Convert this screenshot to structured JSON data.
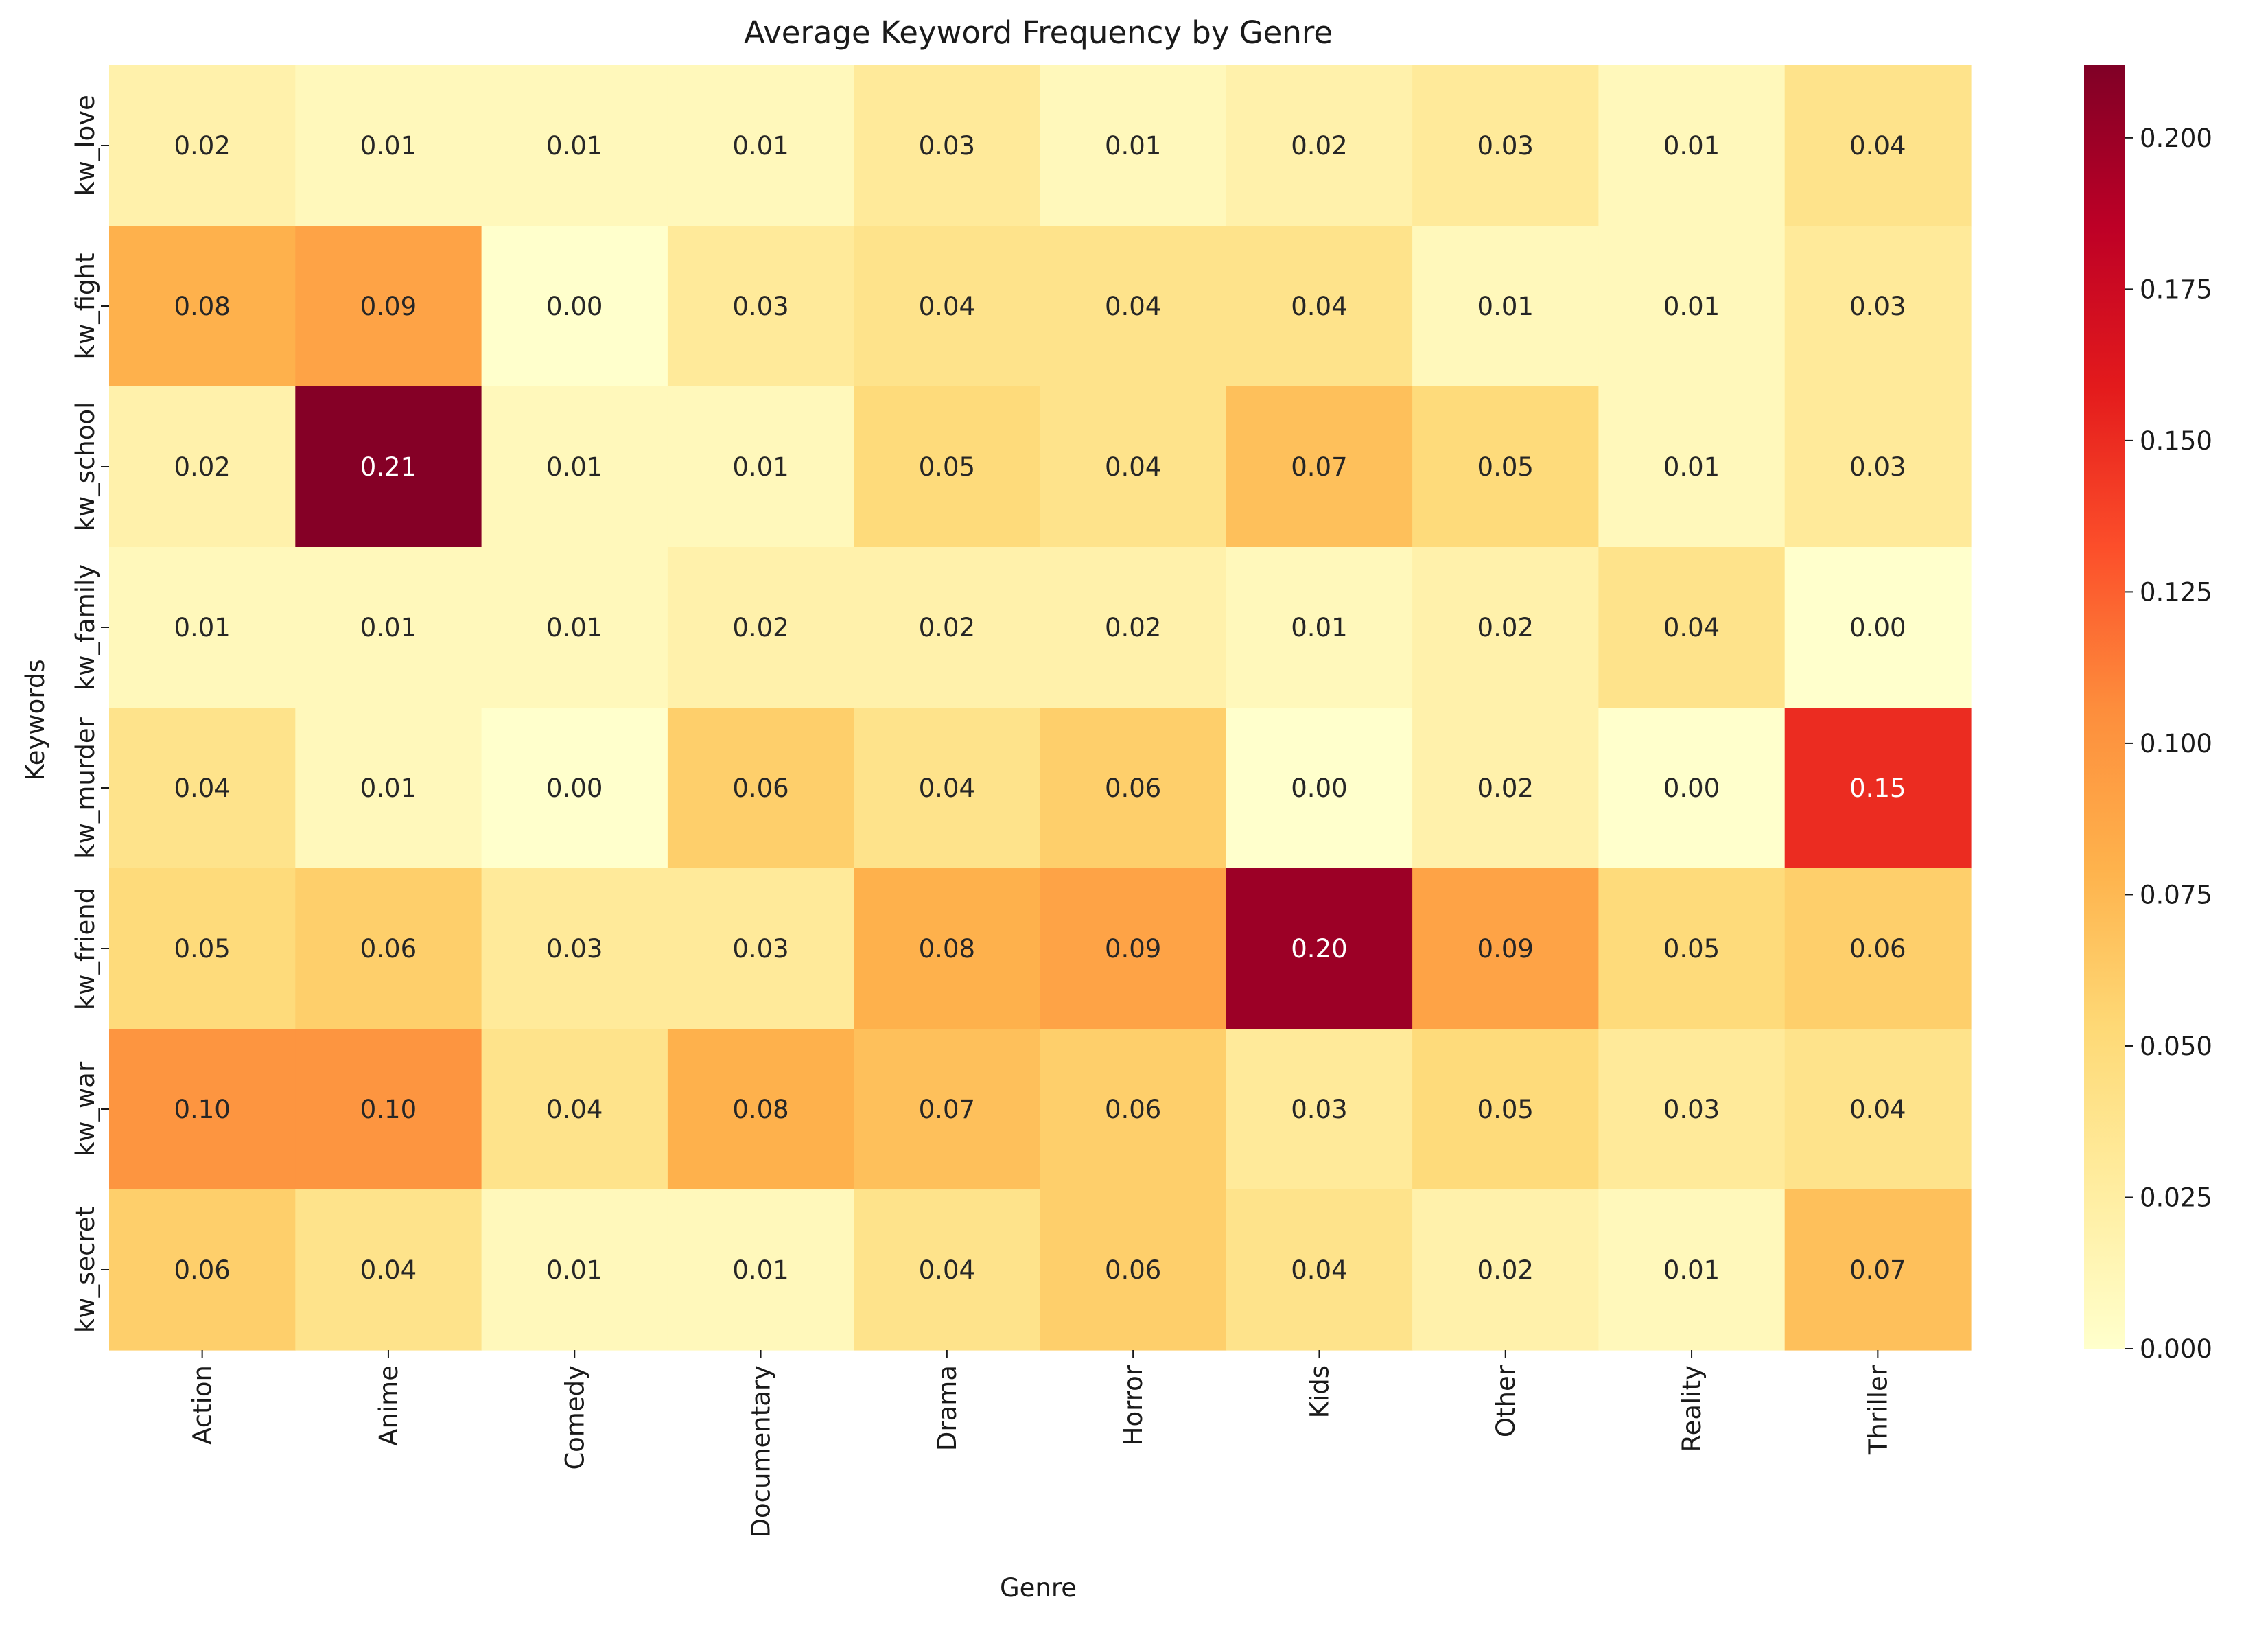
{
  "chart_data": {
    "type": "heatmap",
    "title": "Average Keyword Frequency by Genre",
    "xlabel": "Genre",
    "ylabel": "Keywords",
    "x_categories": [
      "Action",
      "Anime",
      "Comedy",
      "Documentary",
      "Drama",
      "Horror",
      "Kids",
      "Other",
      "Reality",
      "Thriller"
    ],
    "y_categories": [
      "kw_love",
      "kw_fight",
      "kw_school",
      "kw_family",
      "kw_murder",
      "kw_friend",
      "kw_war",
      "kw_secret"
    ],
    "values": [
      [
        0.02,
        0.01,
        0.01,
        0.01,
        0.03,
        0.01,
        0.02,
        0.03,
        0.01,
        0.04
      ],
      [
        0.08,
        0.09,
        0.0,
        0.03,
        0.04,
        0.04,
        0.04,
        0.01,
        0.01,
        0.03
      ],
      [
        0.02,
        0.21,
        0.01,
        0.01,
        0.05,
        0.04,
        0.07,
        0.05,
        0.01,
        0.03
      ],
      [
        0.01,
        0.01,
        0.01,
        0.02,
        0.02,
        0.02,
        0.01,
        0.02,
        0.04,
        0.0
      ],
      [
        0.04,
        0.01,
        0.0,
        0.06,
        0.04,
        0.06,
        0.0,
        0.02,
        0.0,
        0.15
      ],
      [
        0.05,
        0.06,
        0.03,
        0.03,
        0.08,
        0.09,
        0.2,
        0.09,
        0.05,
        0.06
      ],
      [
        0.1,
        0.1,
        0.04,
        0.08,
        0.07,
        0.06,
        0.03,
        0.05,
        0.03,
        0.04
      ],
      [
        0.06,
        0.04,
        0.01,
        0.01,
        0.04,
        0.06,
        0.04,
        0.02,
        0.01,
        0.07
      ]
    ],
    "value_format": "0.00",
    "colormap": "YlOrRd",
    "colormap_stops": [
      "#ffffcc",
      "#ffeda0",
      "#fed976",
      "#feb24c",
      "#fd8d3c",
      "#fc4e2a",
      "#e31a1c",
      "#bd0026",
      "#800026"
    ],
    "vmin": 0.0,
    "vmax": 0.212,
    "colorbar": {
      "ticks": [
        0.0,
        0.025,
        0.05,
        0.075,
        0.1,
        0.125,
        0.15,
        0.175,
        0.2
      ],
      "tick_labels": [
        "0.000",
        "0.025",
        "0.050",
        "0.075",
        "0.100",
        "0.125",
        "0.150",
        "0.175",
        "0.200"
      ]
    },
    "grid": false
  }
}
